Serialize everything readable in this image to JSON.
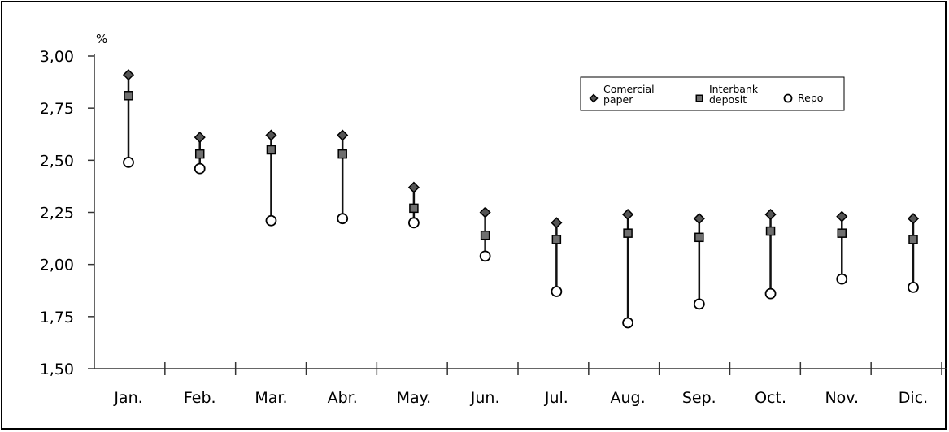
{
  "chart_data": {
    "type": "scatter",
    "ylabel": "%",
    "ylim": [
      1.5,
      3.0
    ],
    "y_ticks": [
      "3,00",
      "2,75",
      "2,50",
      "2,25",
      "2,00",
      "1,75",
      "1,50"
    ],
    "y_tick_values": [
      3.0,
      2.75,
      2.5,
      2.25,
      2.0,
      1.75,
      1.5
    ],
    "categories": [
      "Jan.",
      "Feb.",
      "Mar.",
      "Abr.",
      "May.",
      "Jun.",
      "Jul.",
      "Aug.",
      "Sep.",
      "Oct.",
      "Nov.",
      "Dic."
    ],
    "series": [
      {
        "name": "Comercial paper",
        "marker": "diamond",
        "color": "#555555",
        "values": [
          2.91,
          2.61,
          2.62,
          2.62,
          2.37,
          2.25,
          2.2,
          2.24,
          2.22,
          2.24,
          2.23,
          2.22
        ]
      },
      {
        "name": "Interbank deposit",
        "marker": "square",
        "color": "#777777",
        "values": [
          2.81,
          2.53,
          2.55,
          2.53,
          2.27,
          2.14,
          2.12,
          2.15,
          2.13,
          2.16,
          2.15,
          2.12
        ]
      },
      {
        "name": "Repo",
        "marker": "circle",
        "color": "#ffffff",
        "values": [
          2.49,
          2.46,
          2.21,
          2.22,
          2.2,
          2.04,
          1.87,
          1.72,
          1.81,
          1.86,
          1.93,
          1.89
        ]
      }
    ],
    "grid": false,
    "legend_position": "top-right",
    "range_lines": true
  }
}
